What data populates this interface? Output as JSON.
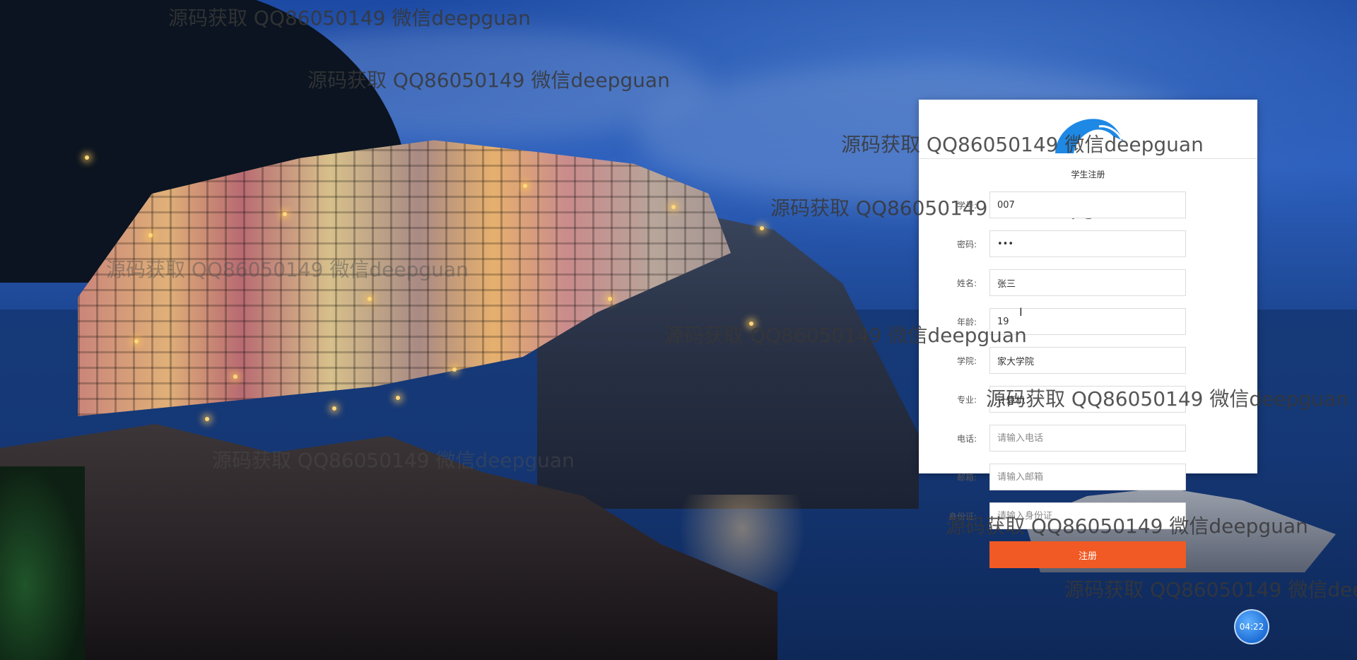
{
  "watermark_text": "源码获取 QQ86050149 微信deepguan",
  "form": {
    "title": "学生注册",
    "fields": [
      {
        "label": "学号:",
        "value": "007",
        "placeholder": "",
        "type": "text"
      },
      {
        "label": "密码:",
        "value": "•••",
        "placeholder": "",
        "type": "text"
      },
      {
        "label": "姓名:",
        "value": "张三",
        "placeholder": "",
        "type": "text"
      },
      {
        "label": "年龄:",
        "value": "19",
        "placeholder": "",
        "type": "text"
      },
      {
        "label": "学院:",
        "value": "家大学院",
        "placeholder": "",
        "type": "text"
      },
      {
        "label": "专业:",
        "value": "计算机",
        "placeholder": "",
        "type": "text"
      },
      {
        "label": "电话:",
        "value": "",
        "placeholder": "请输入电话",
        "type": "text"
      },
      {
        "label": "邮箱:",
        "value": "",
        "placeholder": "请输入邮箱",
        "type": "text"
      },
      {
        "label": "身份证:",
        "value": "",
        "placeholder": "请输入身份证",
        "type": "text"
      }
    ],
    "submit_label": "注册"
  },
  "clock": {
    "time": "04:22"
  },
  "colors": {
    "accent": "#f15a24",
    "logo": "#1e88e5",
    "panel_bg": "#ffffff"
  },
  "icons": {
    "logo": "wave-logo-icon",
    "cursor": "text-cursor-icon"
  }
}
